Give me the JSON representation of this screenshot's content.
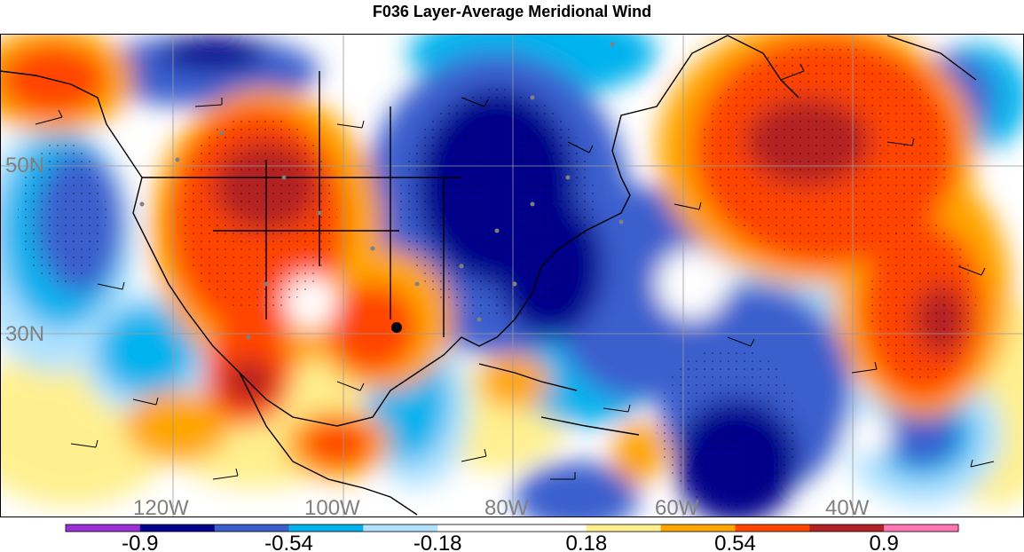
{
  "title": "F036 Layer-Average Meridional Wind",
  "map": {
    "latitude_labels": [
      "50N",
      "30N"
    ],
    "longitude_labels": [
      "120W",
      "100W",
      "80W",
      "60W",
      "40W"
    ]
  },
  "colorbar": {
    "colors": [
      "#9b30d9",
      "#00008b",
      "#3a5fcd",
      "#00b2ee",
      "#b0e2ff",
      "#ffffff",
      "#ffffff",
      "#fff08f",
      "#ffa500",
      "#ff4500",
      "#b22222",
      "#ff77b4"
    ],
    "tick_labels": [
      "-0.9",
      "-0.54",
      "-0.18",
      "0.18",
      "0.54",
      "0.9"
    ]
  },
  "palette": {
    "dark_blue": "#00008b",
    "blue": "#3a5fcd",
    "cyan": "#00b2ee",
    "light_blue": "#b0e2ff",
    "white": "#ffffff",
    "light_yellow": "#fff08f",
    "orange": "#ffa500",
    "red_orange": "#ff4500",
    "dark_red": "#b22222"
  }
}
